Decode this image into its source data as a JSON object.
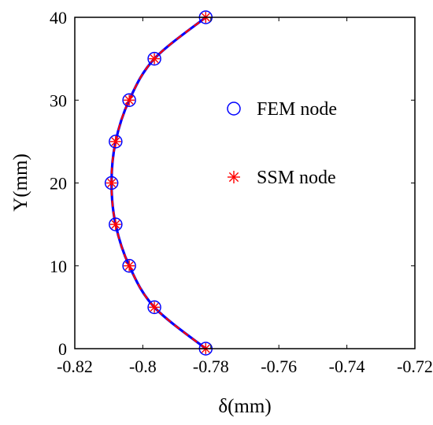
{
  "chart_data": {
    "type": "line",
    "xlabel": "δ(mm)",
    "ylabel": "Y(mm)",
    "xlim": [
      -0.82,
      -0.72
    ],
    "ylim": [
      0,
      40
    ],
    "x_ticks": [
      "-0.82",
      "-0.8",
      "-0.78",
      "-0.76",
      "-0.74",
      "-0.72"
    ],
    "y_ticks": [
      "0",
      "10",
      "20",
      "30",
      "40"
    ],
    "grid": false,
    "legend_position": "right",
    "series": [
      {
        "name": "FEM node",
        "marker": "circle",
        "color": "#0000ff",
        "x": [
          -0.7815,
          -0.7966,
          -0.804,
          -0.808,
          -0.8092,
          -0.808,
          -0.804,
          -0.7966,
          -0.7815
        ],
        "y": [
          0,
          5,
          10,
          15,
          20,
          25,
          30,
          35,
          40
        ]
      },
      {
        "name": "SSM node",
        "marker": "asterisk",
        "color": "#ff0000",
        "x": [
          -0.7815,
          -0.7966,
          -0.804,
          -0.808,
          -0.8092,
          -0.808,
          -0.804,
          -0.7966,
          -0.7815
        ],
        "y": [
          0,
          5,
          10,
          15,
          20,
          25,
          30,
          35,
          40
        ]
      }
    ]
  }
}
